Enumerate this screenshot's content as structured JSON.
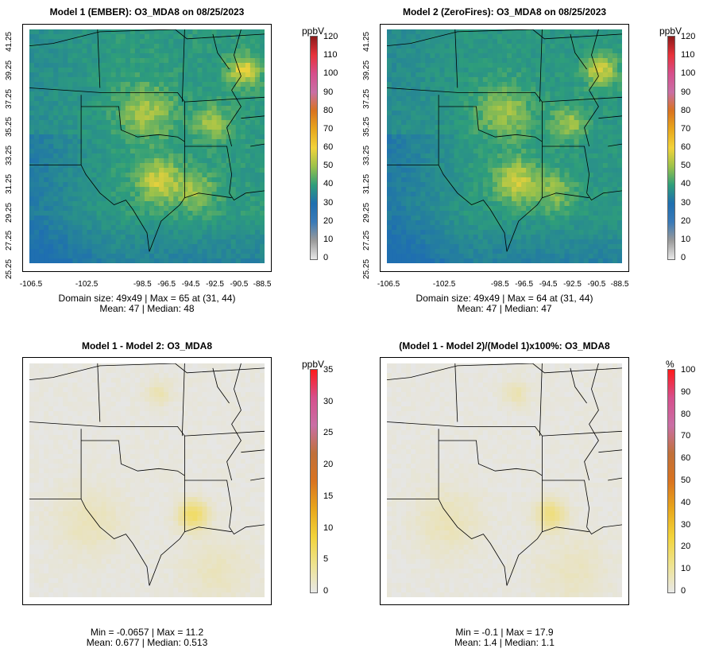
{
  "panels": [
    {
      "title": "Model 1 (EMBER): O3_MDA8 on 08/25/2023",
      "stat_line1": "Domain size: 49x49 | Max = 65 at (31, 44)",
      "stat_line2": "Mean: 47 |  Median: 48",
      "legend_unit": "ppbV",
      "legend_ticks": [
        "120",
        "110",
        "100",
        "90",
        "80",
        "70",
        "60",
        "50",
        "40",
        "30",
        "20",
        "10",
        "0"
      ],
      "y_ticks": [
        "41.25",
        "39.25",
        "37.25",
        "35.25",
        "33.25",
        "31.25",
        "29.25",
        "27.25",
        "25.25"
      ],
      "x_ticks": [
        "-106.5",
        "-102.5",
        "-98.5",
        "-96.5",
        "-94.5",
        "-92.5",
        "-90.5",
        "-88.5"
      ],
      "field_type": "ozone"
    },
    {
      "title": "Model 2 (ZeroFires): O3_MDA8 on 08/25/2023",
      "stat_line1": "Domain size: 49x49 | Max = 64 at (31, 44)",
      "stat_line2": "Mean: 47 |  Median: 47",
      "legend_unit": "ppbV",
      "legend_ticks": [
        "120",
        "110",
        "100",
        "90",
        "80",
        "70",
        "60",
        "50",
        "40",
        "30",
        "20",
        "10",
        "0"
      ],
      "y_ticks": [
        "41.25",
        "39.25",
        "37.25",
        "35.25",
        "33.25",
        "31.25",
        "29.25",
        "27.25",
        "25.25"
      ],
      "x_ticks": [
        "-106.5",
        "-102.5",
        "-98.5",
        "-96.5",
        "-94.5",
        "-92.5",
        "-90.5",
        "-88.5"
      ],
      "field_type": "ozone"
    },
    {
      "title": "Model 1 - Model 2: O3_MDA8",
      "stat_line1": "Min = -0.0657 | Max = 11.2",
      "stat_line2": "Mean: 0.677 |  Median: 0.513",
      "legend_unit": "ppbV",
      "legend_ticks": [
        "35",
        "30",
        "25",
        "20",
        "15",
        "10",
        "5",
        "0"
      ],
      "field_type": "diff"
    },
    {
      "title": "(Model 1 - Model 2)/(Model 1)x100%: O3_MDA8",
      "stat_line1": "Min = -0.1 | Max = 17.9",
      "stat_line2": "Mean: 1.4 |  Median: 1.1",
      "legend_unit": "%",
      "legend_ticks": [
        "100",
        "90",
        "80",
        "70",
        "60",
        "50",
        "40",
        "30",
        "20",
        "10",
        "0"
      ],
      "field_type": "pct"
    }
  ],
  "colors": {
    "ozone_low": "#1f6fb0",
    "ozone_mid": "#2e9e7a",
    "ozone_high": "#f2d33a",
    "diff_bg": "#e6e6e6",
    "diff_yellow": "#f2e6a6"
  }
}
